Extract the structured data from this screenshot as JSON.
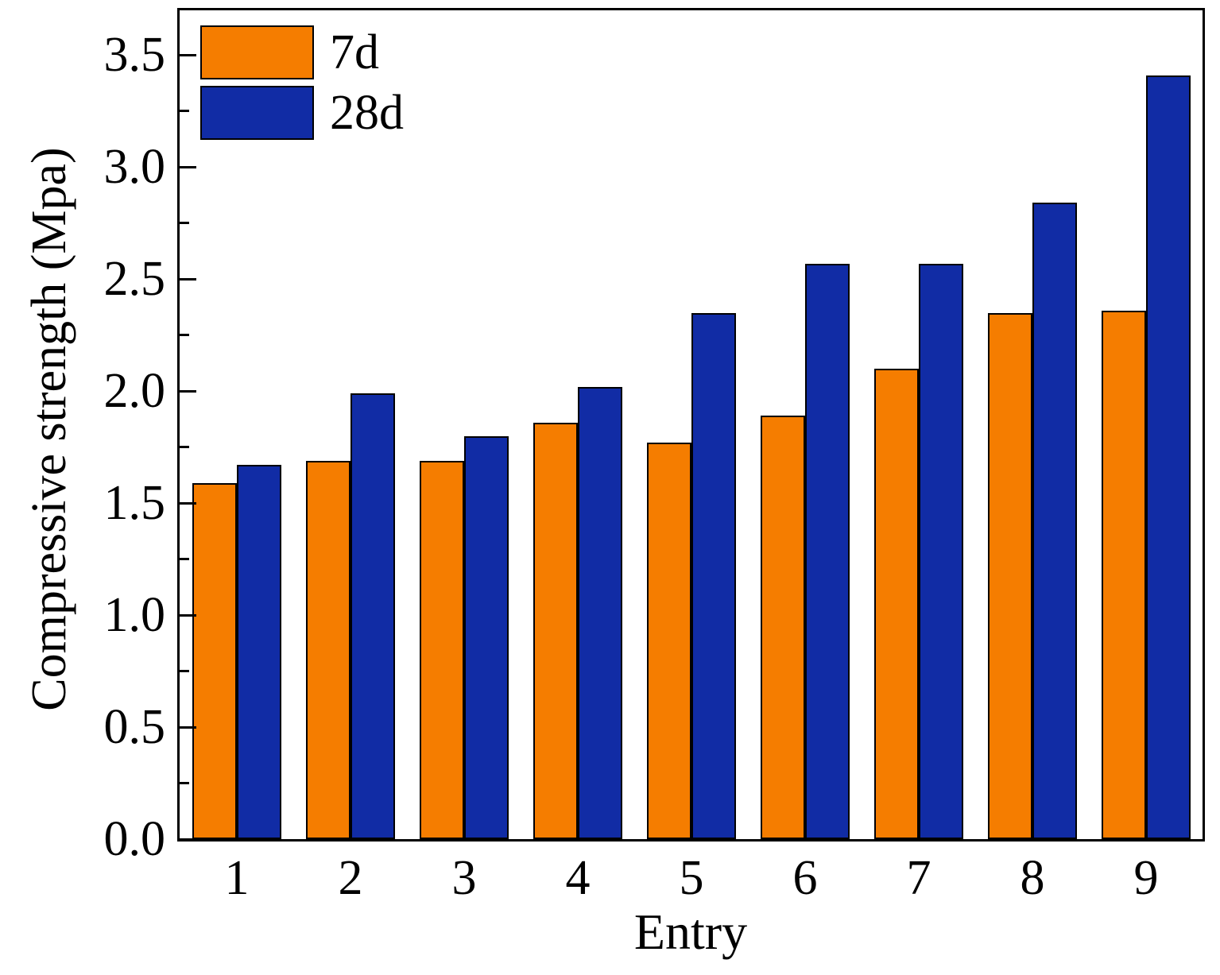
{
  "chart_data": {
    "type": "bar",
    "title": "",
    "x_label": "Entry",
    "y_label": "Compressive strength (Mpa)",
    "categories": [
      "1",
      "2",
      "3",
      "4",
      "5",
      "6",
      "7",
      "8",
      "9"
    ],
    "series": [
      {
        "name": "7d",
        "color": "#F57D00",
        "values": [
          1.59,
          1.69,
          1.69,
          1.86,
          1.77,
          1.89,
          2.1,
          2.35,
          2.36
        ]
      },
      {
        "name": "28d",
        "color": "#112CA5",
        "values": [
          1.67,
          1.99,
          1.8,
          2.02,
          2.35,
          2.57,
          2.57,
          2.84,
          3.41
        ]
      }
    ],
    "ylim": [
      0,
      3.7
    ],
    "y_major_ticks": [
      "0.0",
      "0.5",
      "1.0",
      "1.5",
      "2.0",
      "2.5",
      "3.0",
      "3.5"
    ],
    "y_minor_tick_interval": 0.25,
    "grid": false,
    "legend_position": "top-left",
    "frame": "full-box",
    "axis_color": "#000000",
    "background_color": "#FFFFFF"
  }
}
